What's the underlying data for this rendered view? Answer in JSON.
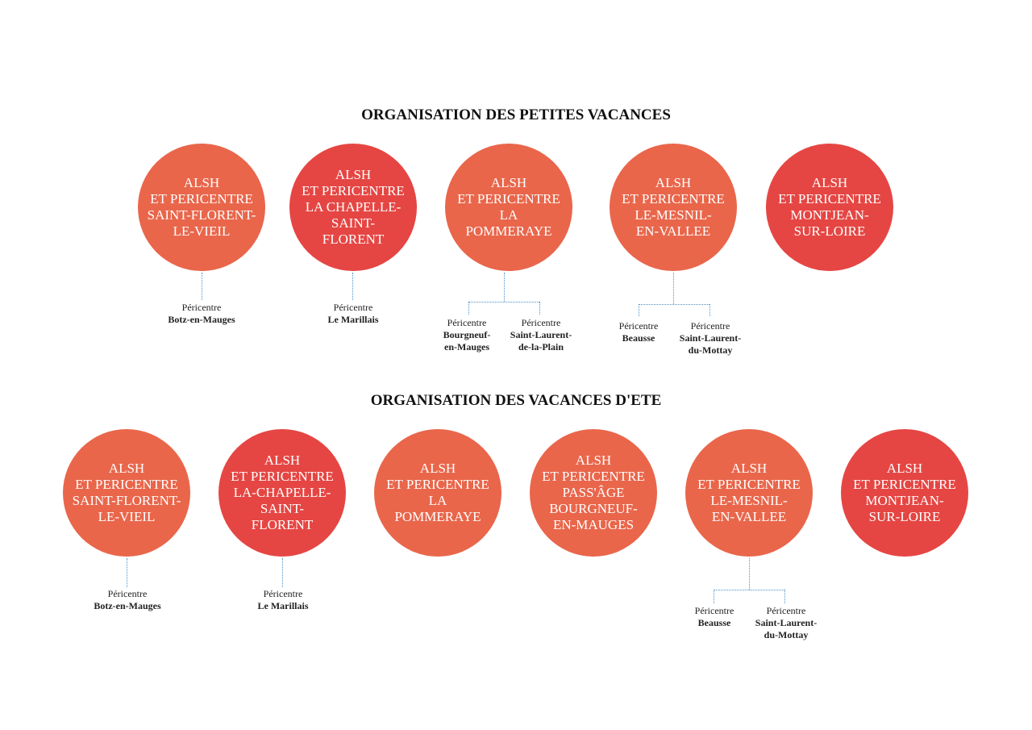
{
  "titles": {
    "petites": "ORGANISATION DES PETITES VACANCES",
    "ete": "ORGANISATION DES VACANCES D'ETE"
  },
  "colors": {
    "orange": "#e9664b",
    "red": "#e54643",
    "connector": "#4a90c8"
  },
  "petites": [
    {
      "lines": [
        "ALSH",
        "ET PERICENTRE",
        "SAINT-FLORENT-",
        "LE-VIEIL"
      ]
    },
    {
      "lines": [
        "ALSH",
        "ET PERICENTRE",
        "LA CHAPELLE-",
        "SAINT-",
        "FLORENT"
      ]
    },
    {
      "lines": [
        "ALSH",
        "ET PERICENTRE",
        "LA",
        "POMMERAYE"
      ]
    },
    {
      "lines": [
        "ALSH",
        "ET PERICENTRE",
        "LE-MESNIL-",
        "EN-VALLEE"
      ]
    },
    {
      "lines": [
        "ALSH",
        "ET PERICENTRE",
        "MONTJEAN-",
        "SUR-LOIRE"
      ]
    }
  ],
  "ete": [
    {
      "lines": [
        "ALSH",
        "ET PERICENTRE",
        "SAINT-FLORENT-",
        "LE-VIEIL"
      ]
    },
    {
      "lines": [
        "ALSH",
        "ET PERICENTRE",
        "LA-CHAPELLE-",
        "SAINT-",
        "FLORENT"
      ]
    },
    {
      "lines": [
        "ALSH",
        "ET PERICENTRE",
        "LA",
        "POMMERAYE"
      ]
    },
    {
      "lines": [
        "ALSH",
        "ET PERICENTRE",
        "PASS'ÂGE",
        "BOURGNEUF-",
        "EN-MAUGES"
      ]
    },
    {
      "lines": [
        "ALSH",
        "ET PERICENTRE",
        "LE-MESNIL-",
        "EN-VALLEE"
      ]
    },
    {
      "lines": [
        "ALSH",
        "ET PERICENTRE",
        "MONTJEAN-",
        "SUR-LOIRE"
      ]
    }
  ],
  "peri_label": "Péricentre",
  "pericentres": {
    "p1": [
      "Botz-en-Mauges"
    ],
    "p2": [
      "Le Marillais"
    ],
    "p3a": [
      "Bourgneuf-",
      "en-Mauges"
    ],
    "p3b": [
      "Saint-Laurent-",
      "de-la-Plain"
    ],
    "p4a": [
      "Beausse"
    ],
    "p4b": [
      "Saint-Laurent-",
      "du-Mottay"
    ],
    "e1": [
      "Botz-en-Mauges"
    ],
    "e2": [
      "Le Marillais"
    ],
    "e5a": [
      "Beausse"
    ],
    "e5b": [
      "Saint-Laurent-",
      "du-Mottay"
    ]
  }
}
